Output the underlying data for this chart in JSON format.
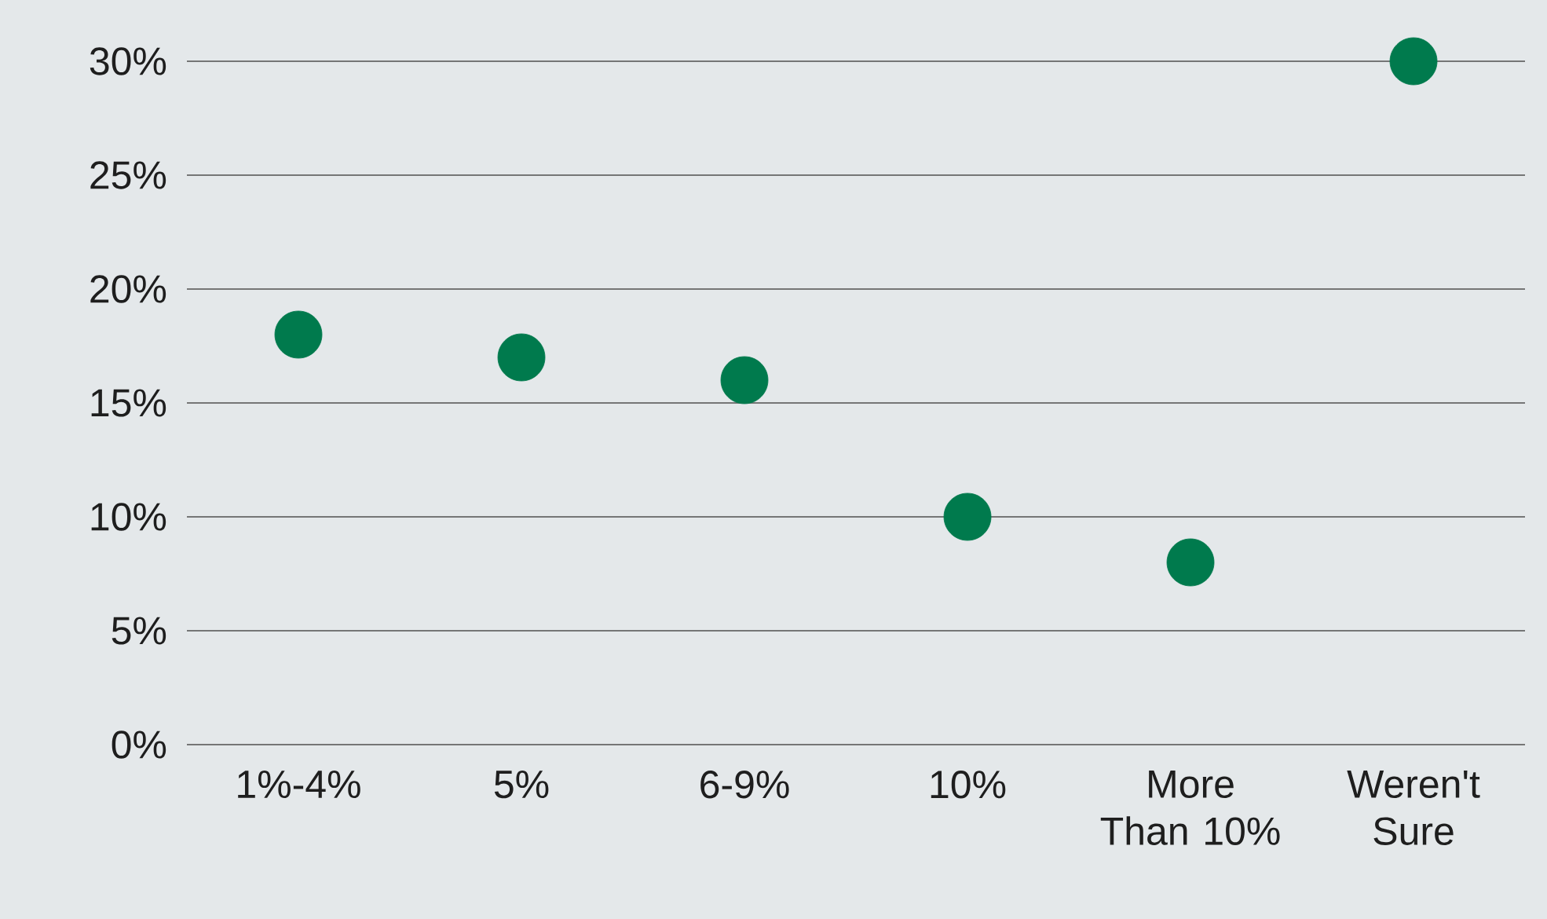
{
  "chart_data": {
    "type": "scatter",
    "categories": [
      "1%-4%",
      "5%",
      "6-9%",
      "10%",
      "More Than 10%",
      "Weren't Sure"
    ],
    "values": [
      18,
      17,
      16,
      10,
      8,
      30
    ],
    "color": "#007a4d",
    "ylim": [
      0,
      30
    ],
    "yticks": [
      {
        "value": 0,
        "label": "0%"
      },
      {
        "value": 5,
        "label": "5%"
      },
      {
        "value": 10,
        "label": "10%"
      },
      {
        "value": 15,
        "label": "15%"
      },
      {
        "value": 20,
        "label": "20%"
      },
      {
        "value": 25,
        "label": "25%"
      },
      {
        "value": 30,
        "label": "30%"
      }
    ],
    "grid": "y",
    "marker": "circle"
  }
}
